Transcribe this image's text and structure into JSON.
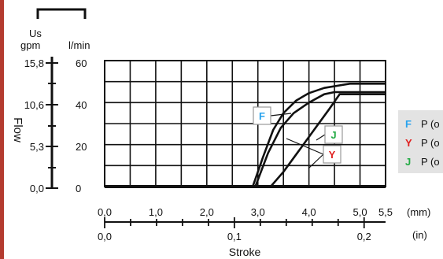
{
  "chart_data": {
    "type": "line",
    "ylabel": "Flow",
    "xlabel": "Stroke",
    "y_units": {
      "gpm_header_1": "Us",
      "gpm_header_2": "gpm",
      "lmin_header": "l/min"
    },
    "y_ticks_gpm": [
      "15,8",
      "10,6",
      "5,3",
      "0,0"
    ],
    "y_ticks_lmin": [
      "60",
      "40",
      "20",
      "0"
    ],
    "y_tick_values": [
      60,
      40,
      20,
      0
    ],
    "x_ticks_mm": [
      "0,0",
      "1,0",
      "2,0",
      "3,0",
      "4,0",
      "5,0",
      "5,5"
    ],
    "x_tick_values_mm": [
      0,
      1,
      2,
      3,
      4,
      5,
      5.5
    ],
    "x_unit_mm": "(mm)",
    "x_ticks_in": [
      "0,0",
      "0,1",
      "0,2"
    ],
    "x_tick_values_in": [
      0,
      0.1,
      0.2
    ],
    "x_unit_in": "(in)",
    "xlim_mm": [
      0,
      5.5
    ],
    "ylim": [
      0,
      60
    ],
    "grid": true,
    "series": [
      {
        "label": "F",
        "label_color": "#29a3ee",
        "x": [
          2.9,
          3.1,
          3.3,
          3.5,
          3.75,
          4.0,
          4.3,
          4.55,
          4.8,
          5.5
        ],
        "y": [
          0,
          14,
          27,
          35,
          41,
          44.5,
          47,
          48,
          49,
          49
        ]
      },
      {
        "label": "Y",
        "label_color": "#e0201f",
        "x": [
          2.95,
          3.2,
          3.45,
          3.7,
          4.0,
          4.3,
          4.5,
          4.8,
          5.5
        ],
        "y": [
          0,
          16,
          28,
          35,
          40,
          44,
          45,
          45,
          45
        ]
      },
      {
        "label": "J",
        "label_color": "#22aa44",
        "x": [
          3.25,
          3.5,
          3.8,
          4.1,
          4.4,
          4.6,
          5.0,
          5.5
        ],
        "y": [
          0,
          7,
          17,
          27,
          37,
          44,
          44,
          44
        ]
      }
    ],
    "legend": {
      "placement": "right",
      "items": [
        {
          "letter": "F",
          "text": "P (o",
          "color": "#29a3ee"
        },
        {
          "letter": "Y",
          "text": "P (o",
          "color": "#e0201f"
        },
        {
          "letter": "J",
          "text": "P (o",
          "color": "#22aa44"
        }
      ]
    }
  }
}
